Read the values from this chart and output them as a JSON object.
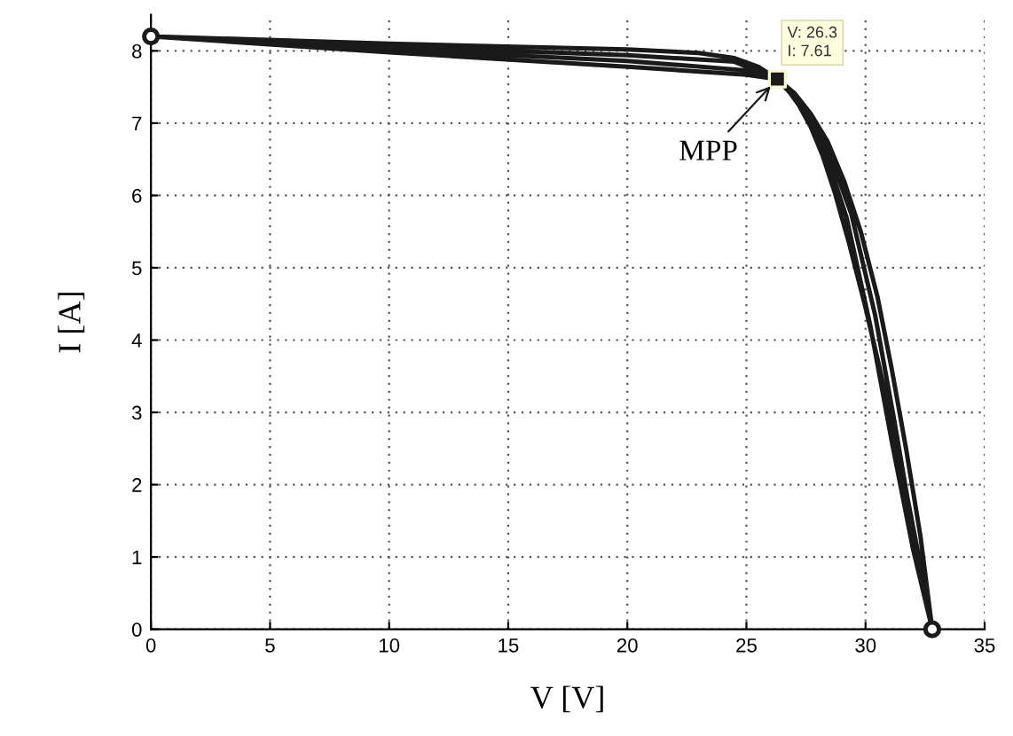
{
  "chart_data": {
    "type": "line",
    "xlabel": "V [V]",
    "ylabel": "I [A]",
    "xlim": [
      0,
      35
    ],
    "ylim": [
      0,
      8.5
    ],
    "xticks": [
      0,
      5,
      10,
      15,
      20,
      25,
      30,
      35
    ],
    "yticks": [
      0,
      1,
      2,
      3,
      4,
      5,
      6,
      7,
      8
    ],
    "grid": true,
    "line_style": "solid",
    "series": [
      {
        "color": "#1a1a1a",
        "marker": "none",
        "x": [
          0,
          10,
          20,
          25,
          26.3,
          26.7,
          27.2,
          27.7,
          28.2,
          28.7,
          29.3,
          30,
          30.6,
          31.2,
          31.8,
          32.3,
          32.8,
          null,
          0,
          10,
          20,
          25,
          26.3,
          27.2,
          28.2,
          29.2,
          30.2,
          31.1,
          32,
          32.8,
          null,
          0,
          10,
          20,
          24.5,
          26.3,
          27.3,
          28.4,
          29.4,
          30.4,
          31.2,
          32,
          32.8,
          null,
          0,
          10,
          20,
          23,
          24.5,
          25.5,
          26.3,
          27,
          27.7,
          28.4,
          29.1,
          29.8,
          30.5,
          31.1,
          31.7,
          32.3,
          32.8
        ],
        "values": [
          8.2,
          7.98,
          7.78,
          7.67,
          7.61,
          7.48,
          7.25,
          6.95,
          6.55,
          6.05,
          5.35,
          4.45,
          3.6,
          2.7,
          1.75,
          0.9,
          0,
          null,
          8.2,
          8.02,
          7.86,
          7.73,
          7.61,
          7.3,
          6.7,
          5.7,
          4.2,
          2.6,
          1.1,
          0,
          null,
          8.2,
          8.06,
          7.94,
          7.85,
          7.61,
          7.25,
          6.65,
          5.75,
          4.35,
          2.9,
          1.35,
          0,
          null,
          8.2,
          8.1,
          8.02,
          7.97,
          7.9,
          7.78,
          7.61,
          7.42,
          7.13,
          6.75,
          6.2,
          5.5,
          4.6,
          3.6,
          2.5,
          1.3,
          0
        ]
      },
      {
        "type": "scatter",
        "color": "#1a1a1a",
        "marker": "circle",
        "x": [
          0,
          32.8
        ],
        "values": [
          8.2,
          0
        ]
      },
      {
        "type": "scatter",
        "color": "#1a1a1a",
        "marker": "square",
        "x": [
          26.3
        ],
        "values": [
          7.61
        ]
      }
    ],
    "annotations": [
      {
        "text": "V: 26.3\nI: 7.61",
        "x": 26.3,
        "y": 7.61
      },
      {
        "text": "MPP",
        "x": 26.3,
        "y": 7.61
      }
    ]
  }
}
